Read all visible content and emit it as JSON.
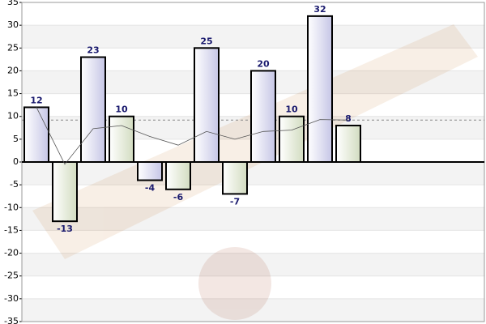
{
  "chart_data": {
    "type": "bar",
    "values": [
      12,
      -13,
      23,
      10,
      -4,
      -6,
      25,
      -7,
      20,
      10,
      32,
      8
    ],
    "colors": [
      "#c6c6e6",
      "#d2dcc0"
    ],
    "line_values": [
      12,
      -0.5,
      7.3,
      8,
      5.6,
      3.7,
      6.7,
      5,
      6.7,
      7,
      9.3,
      9.2
    ],
    "line_color": "#555555",
    "average": 9.2,
    "ylim": [
      -35,
      35
    ],
    "yticks": [
      -35,
      -30,
      -25,
      -20,
      -15,
      -10,
      -5,
      0,
      5,
      10,
      15,
      20,
      25,
      30,
      35
    ],
    "grid": true
  }
}
